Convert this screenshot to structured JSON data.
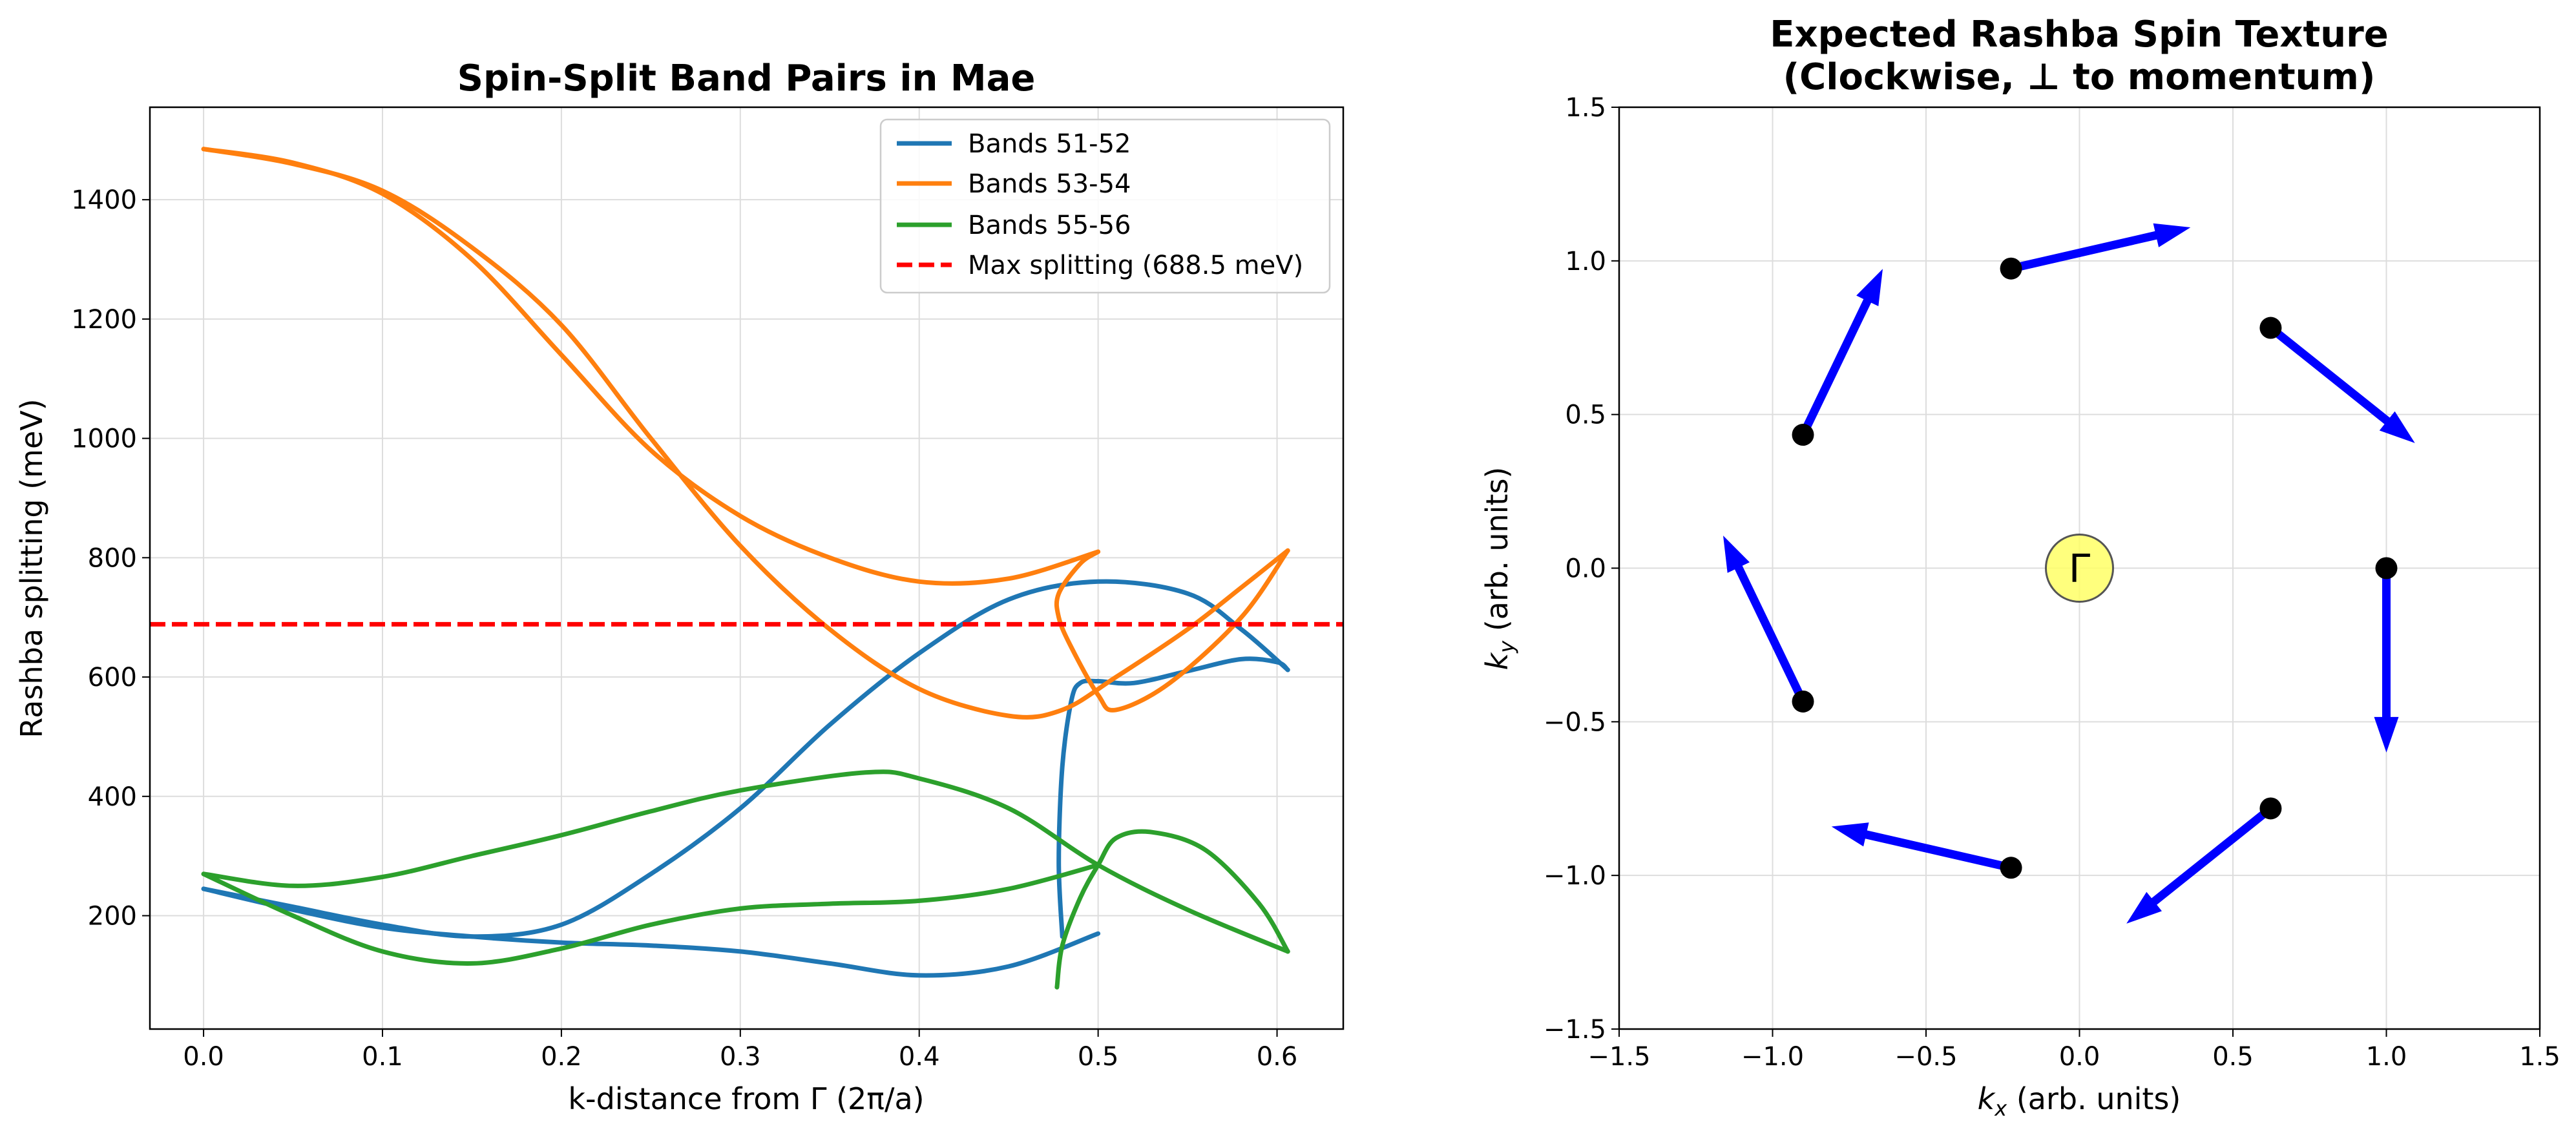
{
  "chart_data": [
    {
      "type": "line",
      "title": "Spin-Split Band Pairs in Mae",
      "xlabel": "k-distance from Γ (2π/a)",
      "ylabel": "Rashba splitting (meV)",
      "xlim": [
        -0.03,
        0.637
      ],
      "ylim": [
        10,
        1555
      ],
      "xticks": [
        0.0,
        0.1,
        0.2,
        0.3,
        0.4,
        0.5,
        0.6
      ],
      "xtick_labels": [
        "0.0",
        "0.1",
        "0.2",
        "0.3",
        "0.4",
        "0.5",
        "0.6"
      ],
      "yticks": [
        200,
        400,
        600,
        800,
        1000,
        1200,
        1400
      ],
      "ytick_labels": [
        "200",
        "400",
        "600",
        "800",
        "1000",
        "1200",
        "1400"
      ],
      "grid": true,
      "legend_position": "top-right",
      "series": [
        {
          "name": "Bands 51-52",
          "color": "#1f77b4",
          "curves": [
            [
              [
                0,
                245
              ],
              [
                0.05,
                215
              ],
              [
                0.1,
                185
              ],
              [
                0.15,
                165
              ],
              [
                0.2,
                185
              ],
              [
                0.25,
                270
              ],
              [
                0.3,
                380
              ],
              [
                0.35,
                520
              ],
              [
                0.4,
                640
              ],
              [
                0.45,
                730
              ],
              [
                0.5,
                760
              ],
              [
                0.55,
                740
              ],
              [
                0.58,
                680
              ],
              [
                0.606,
                612
              ]
            ],
            [
              [
                0,
                245
              ],
              [
                0.05,
                210
              ],
              [
                0.1,
                180
              ],
              [
                0.15,
                165
              ],
              [
                0.2,
                155
              ],
              [
                0.25,
                150
              ],
              [
                0.3,
                140
              ],
              [
                0.35,
                120
              ],
              [
                0.4,
                100
              ],
              [
                0.45,
                115
              ],
              [
                0.5,
                170
              ]
            ],
            [
              [
                0.48,
                165
              ],
              [
                0.478,
                290
              ],
              [
                0.48,
                450
              ],
              [
                0.485,
                560
              ],
              [
                0.49,
                590
              ],
              [
                0.5,
                593
              ],
              [
                0.52,
                590
              ],
              [
                0.55,
                610
              ],
              [
                0.58,
                630
              ],
              [
                0.6,
                625
              ],
              [
                0.606,
                612
              ]
            ]
          ]
        },
        {
          "name": "Bands 53-54",
          "color": "#ff7f0e",
          "curves": [
            [
              [
                0,
                1485
              ],
              [
                0.05,
                1460
              ],
              [
                0.1,
                1415
              ],
              [
                0.15,
                1320
              ],
              [
                0.2,
                1190
              ],
              [
                0.25,
                1000
              ],
              [
                0.3,
                820
              ],
              [
                0.35,
                680
              ],
              [
                0.4,
                580
              ],
              [
                0.45,
                535
              ],
              [
                0.48,
                545
              ],
              [
                0.51,
                600
              ],
              [
                0.55,
                680
              ],
              [
                0.58,
                750
              ],
              [
                0.606,
                812
              ]
            ],
            [
              [
                0,
                1485
              ],
              [
                0.05,
                1462
              ],
              [
                0.1,
                1410
              ],
              [
                0.15,
                1300
              ],
              [
                0.2,
                1140
              ],
              [
                0.25,
                980
              ],
              [
                0.3,
                870
              ],
              [
                0.35,
                800
              ],
              [
                0.4,
                760
              ],
              [
                0.45,
                765
              ],
              [
                0.5,
                810
              ]
            ],
            [
              [
                0.5,
                810
              ],
              [
                0.49,
                790
              ],
              [
                0.478,
                740
              ],
              [
                0.478,
                700
              ],
              [
                0.485,
                650
              ],
              [
                0.5,
                570
              ],
              [
                0.51,
                545
              ],
              [
                0.54,
                590
              ],
              [
                0.58,
                700
              ],
              [
                0.606,
                812
              ]
            ]
          ]
        },
        {
          "name": "Bands 55-56",
          "color": "#2ca02c",
          "curves": [
            [
              [
                0,
                270
              ],
              [
                0.05,
                250
              ],
              [
                0.1,
                265
              ],
              [
                0.15,
                300
              ],
              [
                0.2,
                335
              ],
              [
                0.25,
                375
              ],
              [
                0.3,
                410
              ],
              [
                0.37,
                440
              ],
              [
                0.4,
                430
              ],
              [
                0.45,
                380
              ],
              [
                0.5,
                285
              ],
              [
                0.55,
                210
              ],
              [
                0.606,
                140
              ]
            ],
            [
              [
                0,
                270
              ],
              [
                0.05,
                200
              ],
              [
                0.1,
                140
              ],
              [
                0.15,
                120
              ],
              [
                0.2,
                145
              ],
              [
                0.25,
                185
              ],
              [
                0.3,
                212
              ],
              [
                0.35,
                220
              ],
              [
                0.4,
                225
              ],
              [
                0.45,
                245
              ],
              [
                0.5,
                285
              ]
            ],
            [
              [
                0.477,
                80
              ],
              [
                0.48,
                150
              ],
              [
                0.49,
                230
              ],
              [
                0.5,
                285
              ],
              [
                0.51,
                330
              ],
              [
                0.53,
                340
              ],
              [
                0.56,
                310
              ],
              [
                0.59,
                220
              ],
              [
                0.606,
                140
              ]
            ]
          ]
        }
      ],
      "reference_line": {
        "name": "Max splitting (688.5 meV)",
        "y": 688.5,
        "color": "#ff0000"
      },
      "legend": [
        "Bands 51-52",
        "Bands 53-54",
        "Bands 55-56",
        "Max splitting (688.5 meV)"
      ]
    },
    {
      "type": "quiver",
      "title_line1": "Expected Rashba Spin Texture",
      "title_line2": "(Clockwise, ⊥ to momentum)",
      "xlabel_symbol": "k",
      "xlabel_sub": "x",
      "xlabel_rest": " (arb. units)",
      "ylabel_symbol": "k",
      "ylabel_sub": "y",
      "ylabel_rest": " (arb. units)",
      "xlim": [
        -1.5,
        1.5
      ],
      "ylim": [
        -1.5,
        1.5
      ],
      "xticks": [
        -1.5,
        -1.0,
        -0.5,
        0.0,
        0.5,
        1.0,
        1.5
      ],
      "xtick_labels": [
        "−1.5",
        "−1.0",
        "−0.5",
        "0.0",
        "0.5",
        "1.0",
        "1.5"
      ],
      "yticks": [
        -1.5,
        -1.0,
        -0.5,
        0.0,
        0.5,
        1.0,
        1.5
      ],
      "ytick_labels": [
        "−1.5",
        "−1.0",
        "−0.5",
        "0.0",
        "0.5",
        "1.0",
        "1.5"
      ],
      "grid": true,
      "center_label": "Γ",
      "point_color": "#000000",
      "arrow_color": "#0000ff",
      "center_color": "#ffff66",
      "points": [
        {
          "x": 1.0,
          "y": 0.0,
          "u": 0.0,
          "v": -0.6
        },
        {
          "x": 0.623,
          "y": 0.782,
          "u": 0.47,
          "v": -0.375
        },
        {
          "x": -0.223,
          "y": 0.975,
          "u": 0.585,
          "v": 0.134
        },
        {
          "x": -0.901,
          "y": 0.434,
          "u": 0.26,
          "v": 0.54
        },
        {
          "x": -0.901,
          "y": -0.434,
          "u": -0.26,
          "v": 0.54
        },
        {
          "x": -0.223,
          "y": -0.975,
          "u": -0.585,
          "v": 0.134
        },
        {
          "x": 0.623,
          "y": -0.782,
          "u": -0.47,
          "v": -0.375
        }
      ]
    }
  ]
}
